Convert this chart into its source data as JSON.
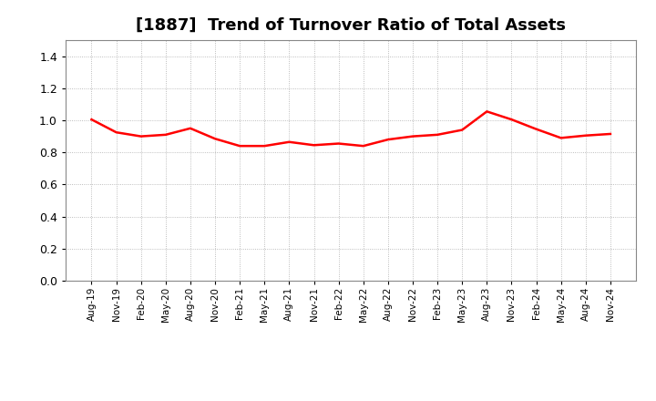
{
  "title": "[1887]  Trend of Turnover Ratio of Total Assets",
  "title_fontsize": 13,
  "line_color": "#FF0000",
  "line_width": 1.8,
  "background_color": "#FFFFFF",
  "plot_bg_color": "#FFFFFF",
  "grid_color": "#AAAAAA",
  "ylim": [
    0.0,
    1.5
  ],
  "yticks": [
    0.0,
    0.2,
    0.4,
    0.6,
    0.8,
    1.0,
    1.2,
    1.4
  ],
  "x_labels": [
    "Aug-19",
    "Nov-19",
    "Feb-20",
    "May-20",
    "Aug-20",
    "Nov-20",
    "Feb-21",
    "May-21",
    "Aug-21",
    "Nov-21",
    "Feb-22",
    "May-22",
    "Aug-22",
    "Nov-22",
    "Feb-23",
    "May-23",
    "Aug-23",
    "Nov-23",
    "Feb-24",
    "May-24",
    "Aug-24",
    "Nov-24"
  ],
  "values": [
    1.005,
    0.925,
    0.9,
    0.91,
    0.95,
    0.885,
    0.84,
    0.84,
    0.865,
    0.845,
    0.855,
    0.84,
    0.88,
    0.9,
    0.91,
    0.94,
    1.055,
    1.005,
    0.945,
    0.89,
    0.905,
    0.915
  ]
}
